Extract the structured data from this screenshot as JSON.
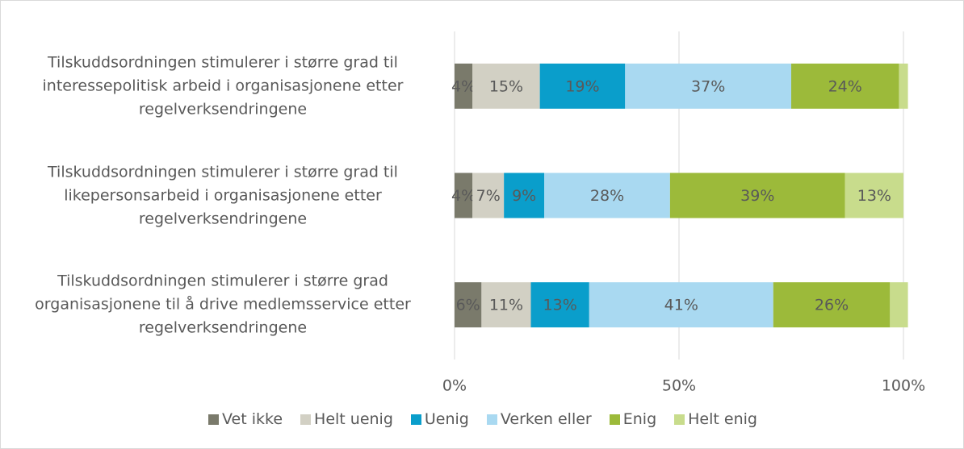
{
  "chart_data": {
    "type": "stacked-barh",
    "categories": [
      "Tilskuddsordningen stimulerer i større grad til interessepolitisk arbeid i organisasjonene etter regelverksendringene",
      "Tilskuddsordningen stimulerer i større grad til likepersonsarbeid i organisasjonene etter regelverksendringene",
      "Tilskuddsordningen stimulerer i større grad organisasjonene til å drive medlemsservice etter regelverksendringene"
    ],
    "series": [
      {
        "name": "Vet ikke",
        "color": "#7a7a6b",
        "values": [
          4,
          4,
          6
        ],
        "value_labels": [
          "4%",
          "4%",
          "6%"
        ]
      },
      {
        "name": "Helt uenig",
        "color": "#d2d0c4",
        "values": [
          15,
          7,
          11
        ],
        "value_labels": [
          "15%",
          "7%",
          "11%"
        ]
      },
      {
        "name": "Uenig",
        "color": "#0a9ecb",
        "values": [
          19,
          9,
          13
        ],
        "value_labels": [
          "19%",
          "9%",
          "13%"
        ]
      },
      {
        "name": "Verken eller",
        "color": "#a9d9f1",
        "values": [
          37,
          28,
          41
        ],
        "value_labels": [
          "37%",
          "28%",
          "41%"
        ]
      },
      {
        "name": "Enig",
        "color": "#9cba3a",
        "values": [
          24,
          39,
          26
        ],
        "value_labels": [
          "24%",
          "39%",
          "26%"
        ]
      },
      {
        "name": "Helt enig",
        "color": "#c8dc8c",
        "values": [
          2,
          13,
          4
        ],
        "value_labels": [
          null,
          "13%",
          null
        ]
      }
    ],
    "xlim": [
      0,
      100
    ],
    "xticks": [
      {
        "value": 0,
        "label": "0%"
      },
      {
        "value": 50,
        "label": "50%"
      },
      {
        "value": 100,
        "label": "100%"
      }
    ],
    "grid": true
  }
}
